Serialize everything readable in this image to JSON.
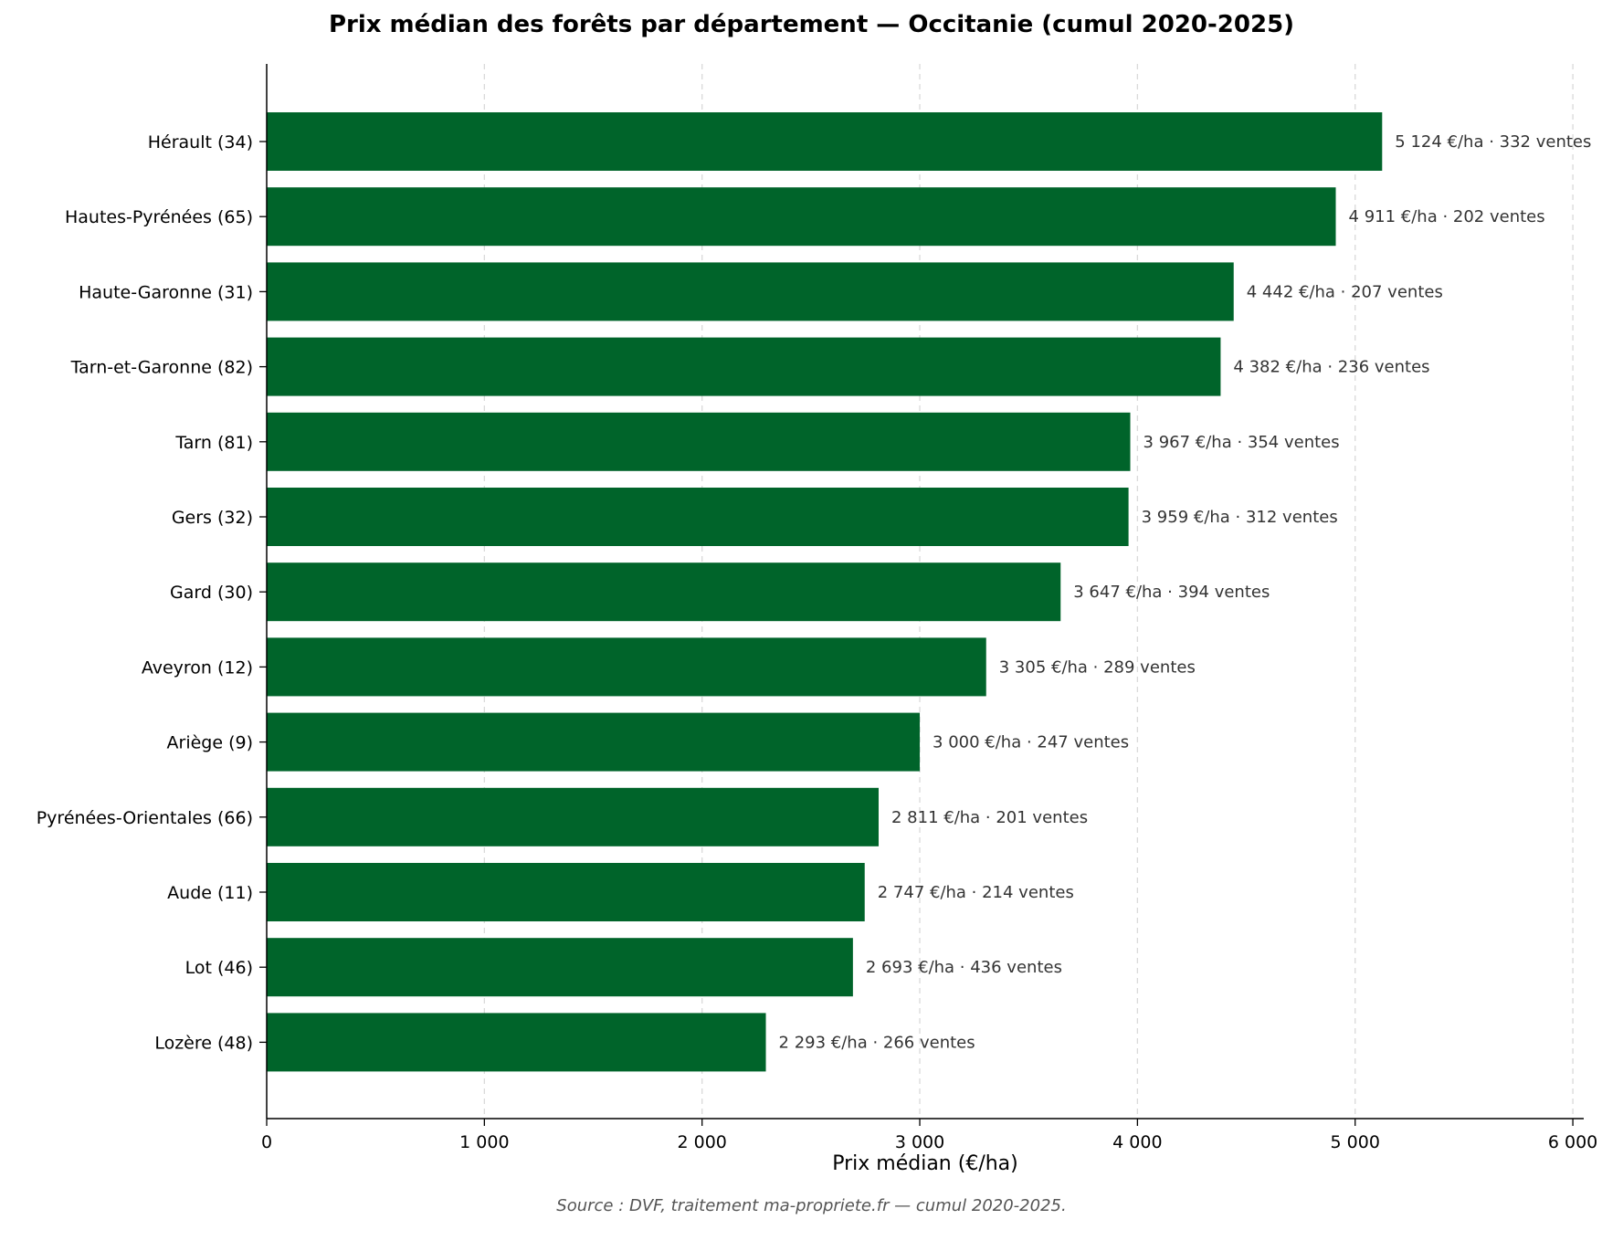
{
  "chart_data": {
    "type": "bar",
    "orientation": "horizontal",
    "title": "Prix médian des forêts par département — Occitanie (cumul 2020-2025)",
    "xlabel": "Prix médian (€/ha)",
    "ylabel": "",
    "xlim": [
      0,
      6050
    ],
    "xticks": [
      0,
      1000,
      2000,
      3000,
      4000,
      5000,
      6000
    ],
    "xtick_labels": [
      "0",
      "1 000",
      "2 000",
      "3 000",
      "4 000",
      "5 000",
      "6 000"
    ],
    "grid": "x, dashed",
    "bar_color": "#00642a",
    "categories": [
      "Hérault (34)",
      "Hautes-Pyrénées (65)",
      "Haute-Garonne (31)",
      "Tarn-et-Garonne (82)",
      "Tarn (81)",
      "Gers (32)",
      "Gard (30)",
      "Aveyron (12)",
      "Ariège (9)",
      "Pyrénées-Orientales (66)",
      "Aude (11)",
      "Lot (46)",
      "Lozère (48)"
    ],
    "values": [
      5124,
      4911,
      4442,
      4382,
      3967,
      3959,
      3647,
      3305,
      3000,
      2811,
      2747,
      2693,
      2293
    ],
    "data_labels": [
      "5 124 €/ha · 332 ventes",
      "4 911 €/ha · 202 ventes",
      "4 442 €/ha · 207 ventes",
      "4 382 €/ha · 236 ventes",
      "3 967 €/ha · 354 ventes",
      "3 959 €/ha · 312 ventes",
      "3 647 €/ha · 394 ventes",
      "3 305 €/ha · 289 ventes",
      "3 000 €/ha · 247 ventes",
      "2 811 €/ha · 201 ventes",
      "2 747 €/ha · 214 ventes",
      "2 693 €/ha · 436 ventes",
      "2 293 €/ha · 266 ventes"
    ]
  },
  "source_note": "Source : DVF, traitement ma-propriete.fr — cumul 2020-2025."
}
